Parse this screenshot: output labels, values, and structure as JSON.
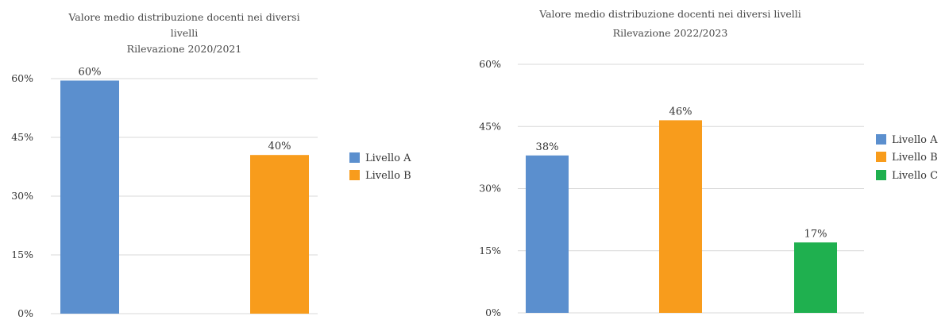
{
  "chart_data": [
    {
      "type": "bar",
      "title": [
        "Valore medio distribuzione docenti nei diversi",
        "livelli",
        "Rilevazione 2020/2021"
      ],
      "y_ticks": [
        "0%",
        "15%",
        "30%",
        "45%",
        "60%"
      ],
      "ylim": [
        0,
        60
      ],
      "grid": true,
      "legend_position": "right",
      "series": [
        {
          "name": "Livello A",
          "value": 59.5,
          "label": "60%",
          "color": "#5b8fce"
        },
        {
          "name": "Livello B",
          "value": 40.5,
          "label": "40%",
          "color": "#f89c1c"
        }
      ]
    },
    {
      "type": "bar",
      "title": [
        "Valore medio distribuzione docenti nei diversi livelli",
        "Rilevazione 2022/2023"
      ],
      "y_ticks": [
        "0%",
        "15%",
        "30%",
        "45%",
        "60%"
      ],
      "ylim": [
        0,
        60
      ],
      "grid": true,
      "legend_position": "right",
      "series": [
        {
          "name": "Livello A",
          "value": 38,
          "label": "38%",
          "color": "#5b8fce"
        },
        {
          "name": "Livello B",
          "value": 46.5,
          "label": "46%",
          "color": "#f89c1c"
        },
        {
          "name": "Livello C",
          "value": 17,
          "label": "17%",
          "color": "#1fb04f"
        }
      ]
    }
  ]
}
